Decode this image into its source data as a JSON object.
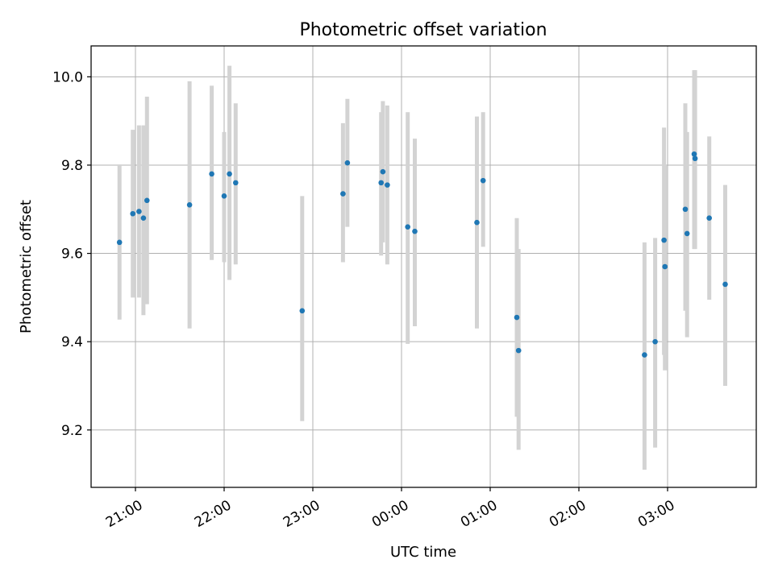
{
  "chart_data": {
    "type": "scatter",
    "title": "Photometric offset variation",
    "xlabel": "UTC time",
    "ylabel": "Photometric offset",
    "x_unit": "hours (UTC, values past 24 belong to the next day)",
    "xlim": [
      20.5,
      28.0
    ],
    "ylim": [
      9.07,
      10.07
    ],
    "x_ticks": [
      21,
      22,
      23,
      24,
      25,
      26,
      27
    ],
    "x_tick_labels": [
      "21:00",
      "22:00",
      "23:00",
      "00:00",
      "01:00",
      "02:00",
      "03:00"
    ],
    "y_ticks": [
      9.2,
      9.4,
      9.6,
      9.8,
      10.0
    ],
    "y_tick_labels": [
      "9.2",
      "9.4",
      "9.6",
      "9.8",
      "10.0"
    ],
    "grid": true,
    "colors": {
      "marker": "#1f77b4",
      "errorbar": "#d3d3d3",
      "grid": "#b0b0b0"
    },
    "points": [
      {
        "x": 20.82,
        "y": 9.625,
        "lo": 9.45,
        "hi": 9.8
      },
      {
        "x": 20.97,
        "y": 9.69,
        "lo": 9.5,
        "hi": 9.88
      },
      {
        "x": 21.04,
        "y": 9.695,
        "lo": 9.5,
        "hi": 9.89
      },
      {
        "x": 21.09,
        "y": 9.68,
        "lo": 9.46,
        "hi": 9.89
      },
      {
        "x": 21.13,
        "y": 9.72,
        "lo": 9.485,
        "hi": 9.955
      },
      {
        "x": 21.61,
        "y": 9.71,
        "lo": 9.43,
        "hi": 9.99
      },
      {
        "x": 21.86,
        "y": 9.78,
        "lo": 9.585,
        "hi": 9.98
      },
      {
        "x": 22.0,
        "y": 9.73,
        "lo": 9.58,
        "hi": 9.875
      },
      {
        "x": 22.06,
        "y": 9.78,
        "lo": 9.54,
        "hi": 10.025
      },
      {
        "x": 22.13,
        "y": 9.76,
        "lo": 9.575,
        "hi": 9.94
      },
      {
        "x": 22.88,
        "y": 9.47,
        "lo": 9.22,
        "hi": 9.73
      },
      {
        "x": 23.34,
        "y": 9.735,
        "lo": 9.58,
        "hi": 9.895
      },
      {
        "x": 23.39,
        "y": 9.805,
        "lo": 9.66,
        "hi": 9.95
      },
      {
        "x": 23.77,
        "y": 9.76,
        "lo": 9.595,
        "hi": 9.92
      },
      {
        "x": 23.79,
        "y": 9.785,
        "lo": 9.625,
        "hi": 9.945
      },
      {
        "x": 23.84,
        "y": 9.755,
        "lo": 9.575,
        "hi": 9.935
      },
      {
        "x": 24.07,
        "y": 9.66,
        "lo": 9.395,
        "hi": 9.92
      },
      {
        "x": 24.15,
        "y": 9.65,
        "lo": 9.435,
        "hi": 9.86
      },
      {
        "x": 24.85,
        "y": 9.67,
        "lo": 9.43,
        "hi": 9.91
      },
      {
        "x": 24.92,
        "y": 9.765,
        "lo": 9.615,
        "hi": 9.92
      },
      {
        "x": 25.3,
        "y": 9.455,
        "lo": 9.23,
        "hi": 9.68
      },
      {
        "x": 25.32,
        "y": 9.38,
        "lo": 9.155,
        "hi": 9.61
      },
      {
        "x": 26.74,
        "y": 9.37,
        "lo": 9.11,
        "hi": 9.625
      },
      {
        "x": 26.86,
        "y": 9.4,
        "lo": 9.16,
        "hi": 9.635
      },
      {
        "x": 26.96,
        "y": 9.63,
        "lo": 9.37,
        "hi": 9.885
      },
      {
        "x": 26.97,
        "y": 9.57,
        "lo": 9.335,
        "hi": 9.8
      },
      {
        "x": 27.2,
        "y": 9.7,
        "lo": 9.47,
        "hi": 9.94
      },
      {
        "x": 27.22,
        "y": 9.645,
        "lo": 9.41,
        "hi": 9.875
      },
      {
        "x": 27.3,
        "y": 9.825,
        "lo": 9.61,
        "hi": 10.015
      },
      {
        "x": 27.31,
        "y": 9.815,
        "lo": 9.61,
        "hi": 10.015
      },
      {
        "x": 27.47,
        "y": 9.68,
        "lo": 9.495,
        "hi": 9.865
      },
      {
        "x": 27.65,
        "y": 9.53,
        "lo": 9.3,
        "hi": 9.755
      }
    ]
  }
}
